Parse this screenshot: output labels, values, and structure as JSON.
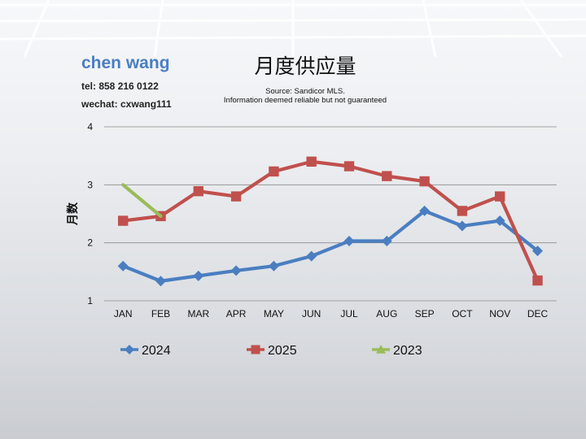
{
  "header": {
    "name": "chen wang",
    "tel": "tel: 858 216 0122",
    "wechat": "wechat: cxwang111",
    "source_line1": "Source: Sandicor MLS.",
    "source_line2": "Information deemed reliable but not guaranteed"
  },
  "chart_data": {
    "type": "line",
    "title": "月度供应量",
    "xlabel": "",
    "ylabel": "月数",
    "categories": [
      "JAN",
      "FEB",
      "MAR",
      "APR",
      "MAY",
      "JUN",
      "JUL",
      "AUG",
      "SEP",
      "OCT",
      "NOV",
      "DEC"
    ],
    "ylim": [
      1,
      4
    ],
    "yticks": [
      1,
      2,
      3,
      4
    ],
    "grid": true,
    "legend_position": "bottom",
    "series": [
      {
        "name": "2024",
        "marker": "diamond",
        "color": "#4a7ec1",
        "values": [
          1.6,
          1.34,
          1.43,
          1.52,
          1.6,
          1.77,
          2.03,
          2.03,
          2.55,
          2.29,
          2.38,
          1.86
        ]
      },
      {
        "name": "2025",
        "marker": "square",
        "color": "#c0504d",
        "values": [
          2.38,
          2.46,
          2.89,
          2.8,
          3.23,
          3.4,
          3.32,
          3.15,
          3.06,
          2.55,
          2.8,
          1.35
        ]
      },
      {
        "name": "2023",
        "marker": "triangle",
        "color": "#9bbb59",
        "values": [
          3.0,
          2.46,
          null,
          null,
          null,
          null,
          null,
          null,
          null,
          null,
          null,
          null
        ]
      }
    ]
  }
}
